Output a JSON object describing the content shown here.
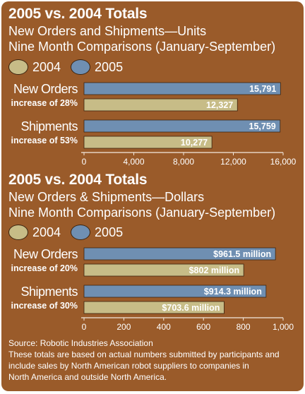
{
  "colors": {
    "y2004": "#c7bc87",
    "y2005": "#6f8fb2",
    "panel": "#9a5b2a"
  },
  "chart_data": [
    {
      "type": "bar",
      "title": "2005 vs. 2004 Totals",
      "subtitle": [
        "New Orders and Shipments—Units",
        "Nine Month Comparisons (January-September)"
      ],
      "legend": [
        "2004",
        "2005"
      ],
      "categories": [
        "New Orders",
        "Shipments"
      ],
      "category_notes": [
        "increase of 28%",
        "increase of 53%"
      ],
      "series": [
        {
          "name": "2005",
          "values": [
            15791,
            15759
          ],
          "labels": [
            "15,791",
            "15,759"
          ]
        },
        {
          "name": "2004",
          "values": [
            12327,
            10277
          ],
          "labels": [
            "12,327",
            "10,277"
          ]
        }
      ],
      "xlim": [
        0,
        16000
      ],
      "ticks": [
        0,
        4000,
        8000,
        12000,
        16000
      ],
      "tick_labels": [
        "0",
        "4,000",
        "8,000",
        "12,000",
        "16,000"
      ]
    },
    {
      "type": "bar",
      "title": "2005 vs. 2004 Totals",
      "subtitle": [
        "New Orders & Shipments—Dollars",
        "Nine Month Comparisons (January-September)"
      ],
      "legend": [
        "2004",
        "2005"
      ],
      "categories": [
        "New Orders",
        "Shipments"
      ],
      "category_notes": [
        "increase of 20%",
        "increase of 30%"
      ],
      "series": [
        {
          "name": "2005",
          "values": [
            961.5,
            914.3
          ],
          "labels": [
            "$961.5 million",
            "$914.3 million"
          ]
        },
        {
          "name": "2004",
          "values": [
            802,
            703.6
          ],
          "labels": [
            "$802 million",
            "$703.6 million"
          ]
        }
      ],
      "xlim": [
        0,
        1000
      ],
      "ticks": [
        0,
        200,
        400,
        600,
        800,
        1000
      ],
      "tick_labels": [
        "0",
        "200",
        "400",
        "600",
        "800",
        "1,000"
      ]
    }
  ],
  "footer": {
    "source": "Source: Robotic Industries Association",
    "note": [
      "These totals are based on actual numbers submitted by participants and",
      "include sales by North American robot suppliers to companies in",
      "North America and outside North America."
    ]
  }
}
